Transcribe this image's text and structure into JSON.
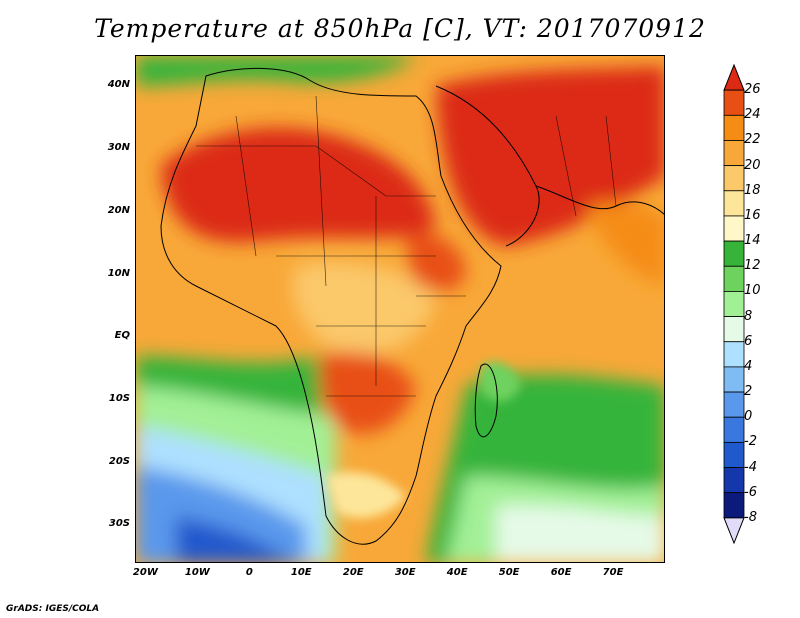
{
  "title": "Temperature at 850hPa [C], VT: 2017070912",
  "credit": "GrADS: IGES/COLA",
  "map": {
    "lat_range": [
      -36,
      45
    ],
    "lon_range": [
      -22,
      80
    ],
    "lat_ticks": [
      {
        "value": 40,
        "label": "40N"
      },
      {
        "value": 30,
        "label": "30N"
      },
      {
        "value": 20,
        "label": "20N"
      },
      {
        "value": 10,
        "label": "10N"
      },
      {
        "value": 0,
        "label": "EQ"
      },
      {
        "value": -10,
        "label": "10S"
      },
      {
        "value": -20,
        "label": "20S"
      },
      {
        "value": -30,
        "label": "30S"
      }
    ],
    "lon_ticks": [
      {
        "value": -20,
        "label": "20W"
      },
      {
        "value": -10,
        "label": "10W"
      },
      {
        "value": 0,
        "label": "0"
      },
      {
        "value": 10,
        "label": "10E"
      },
      {
        "value": 20,
        "label": "20E"
      },
      {
        "value": 30,
        "label": "30E"
      },
      {
        "value": 40,
        "label": "40E"
      },
      {
        "value": 50,
        "label": "50E"
      },
      {
        "value": 60,
        "label": "60E"
      },
      {
        "value": 70,
        "label": "70E"
      }
    ]
  },
  "colorbar": {
    "labels": [
      "26",
      "24",
      "22",
      "20",
      "18",
      "16",
      "14",
      "12",
      "10",
      "8",
      "6",
      "4",
      "2",
      "0",
      "-2",
      "-4",
      "-6",
      "-8"
    ],
    "colors": [
      "#dc2a14",
      "#e84f14",
      "#f58c16",
      "#f8a838",
      "#fbc86a",
      "#fde69a",
      "#fff7c8",
      "#36b43a",
      "#6ed25e",
      "#a2f096",
      "#e6fae8",
      "#aee0ff",
      "#80bcf4",
      "#5a98ec",
      "#3a78e0",
      "#2059cc",
      "#1438ac",
      "#0c1a7c",
      "#140050",
      "#e2dcfa"
    ]
  }
}
